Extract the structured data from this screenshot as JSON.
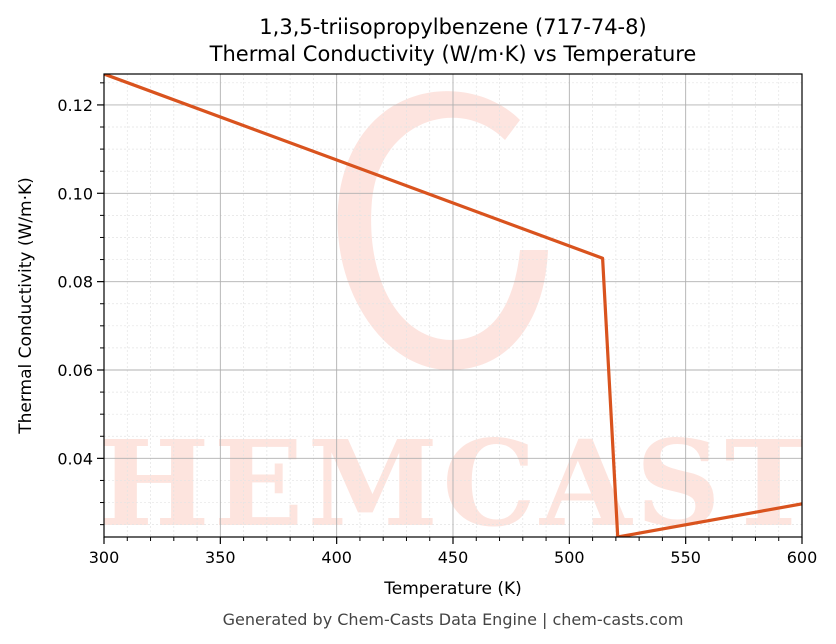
{
  "chart_data": {
    "type": "line",
    "title_line1": "1,3,5-triisopropylbenzene (717-74-8)",
    "title_line2": "Thermal Conductivity (W/m·K) vs Temperature",
    "xlabel": "Temperature (K)",
    "ylabel": "Thermal Conductivity (W/m·K)",
    "xlim": [
      300,
      600
    ],
    "ylim": [
      0.0222,
      0.127
    ],
    "xticks": [
      300,
      350,
      400,
      450,
      500,
      550,
      600
    ],
    "yticks": [
      0.04,
      0.06,
      0.08,
      0.1,
      0.12
    ],
    "xtick_labels": [
      "300",
      "350",
      "400",
      "450",
      "500",
      "550",
      "600"
    ],
    "ytick_labels": [
      "0.04",
      "0.06",
      "0.08",
      "0.10",
      "0.12"
    ],
    "grid": true,
    "series": [
      {
        "color": "#d9531e",
        "x": [
          300,
          514.3,
          520.8,
          600
        ],
        "y": [
          0.127,
          0.0853,
          0.0222,
          0.0297
        ]
      }
    ]
  },
  "watermark": {
    "text": "CHEMCASTS",
    "color": "#fde3dd"
  },
  "footer": "Generated by Chem-Casts Data Engine | chem-casts.com"
}
